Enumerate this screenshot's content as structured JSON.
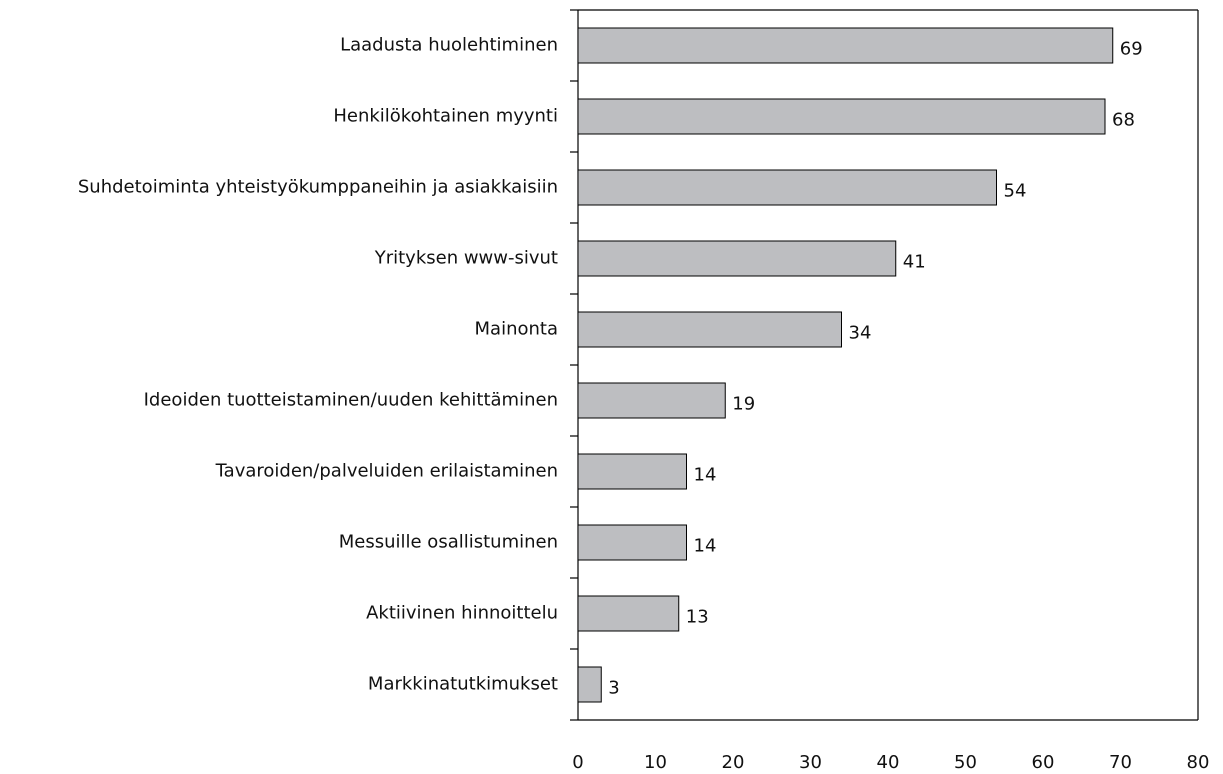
{
  "chart_data": {
    "type": "bar",
    "orientation": "horizontal",
    "categories": [
      "Laadusta huolehtiminen",
      "Henkilökohtainen myynti",
      "Suhdetoiminta yhteistyökumppaneihin ja asiakkaisiin",
      "Yrityksen www-sivut",
      "Mainonta",
      "Ideoiden tuotteistaminen/uuden kehittäminen",
      "Tavaroiden/palveluiden erilaistaminen",
      "Messuille osallistuminen",
      "Aktiivinen hinnoittelu",
      "Markkinatutkimukset"
    ],
    "values": [
      69,
      68,
      54,
      41,
      34,
      19,
      14,
      14,
      13,
      3
    ],
    "color": "#bdbec1",
    "xlim": [
      0,
      80
    ],
    "xticks": [
      0,
      10,
      20,
      30,
      40,
      50,
      60,
      70,
      80
    ],
    "grid": false
  }
}
